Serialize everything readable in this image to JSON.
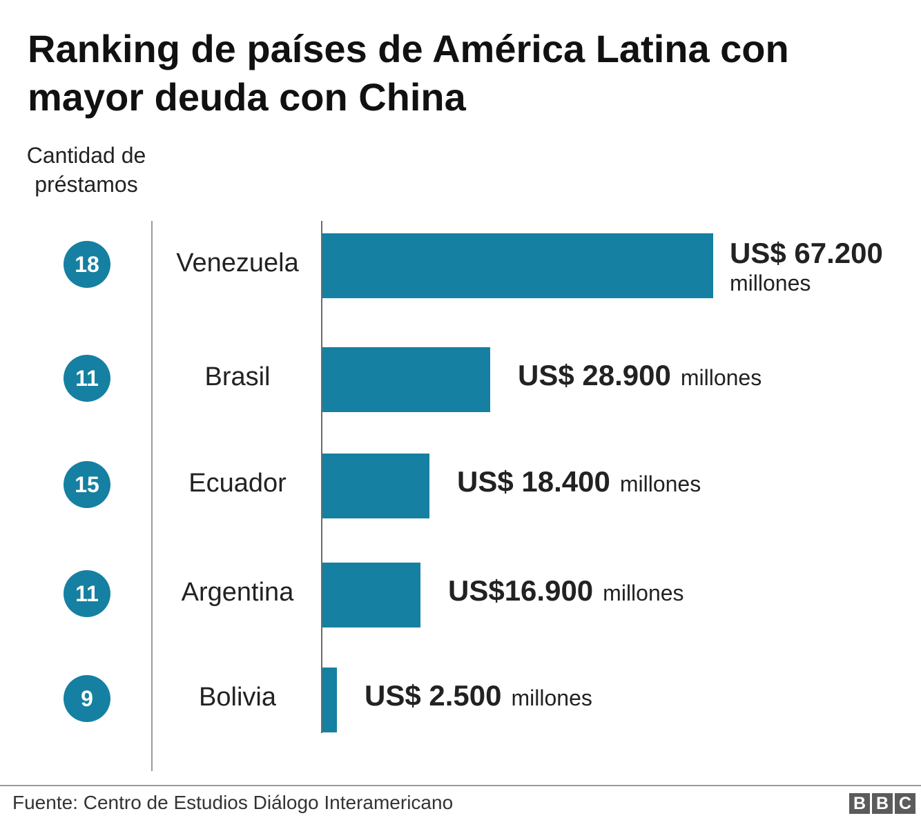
{
  "title": "Ranking de países de América Latina con mayor deuda con China",
  "loans_header": "Cantidad de préstamos",
  "source": "Fuente: Centro de Estudios Diálogo Interamericano",
  "logo": [
    "B",
    "B",
    "C"
  ],
  "colors": {
    "bar": "#1580a1",
    "badge": "#1580a1"
  },
  "chart_data": {
    "type": "bar",
    "orientation": "horizontal",
    "categories": [
      "Venezuela",
      "Brasil",
      "Ecuador",
      "Argentina",
      "Bolivia"
    ],
    "series": [
      {
        "values": [
          67200,
          28900,
          18400,
          16900,
          2500
        ]
      }
    ],
    "loans": [
      "18",
      "11",
      "15",
      "11",
      "9"
    ],
    "value_labels": [
      {
        "amount": "US$ 67.200",
        "unit": "millones"
      },
      {
        "amount": "US$ 28.900",
        "unit": "millones"
      },
      {
        "amount": "US$ 18.400",
        "unit": "millones"
      },
      {
        "amount": "US$16.900",
        "unit": "millones"
      },
      {
        "amount": "US$ 2.500",
        "unit": "millones"
      }
    ],
    "unit": "US$ millones",
    "xlim": [
      0,
      67200
    ],
    "grid": false,
    "legend": "none"
  }
}
